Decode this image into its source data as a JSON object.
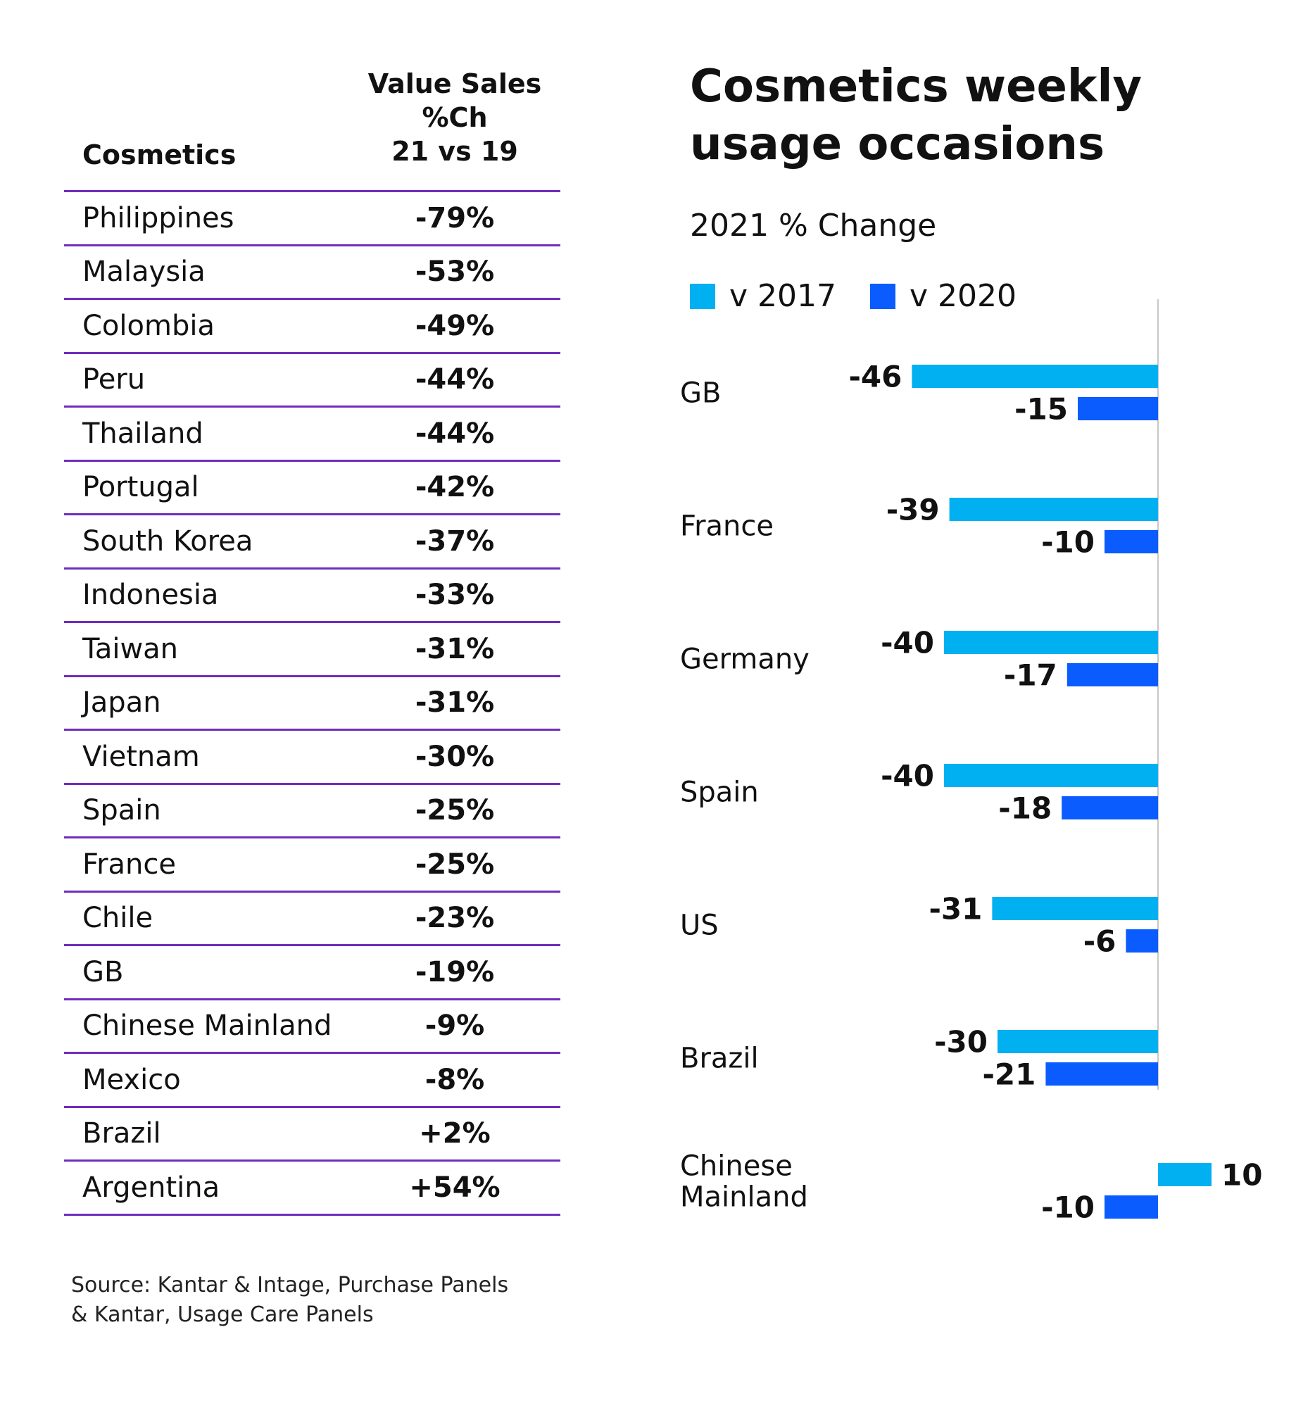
{
  "table": {
    "header_left": "Cosmetics",
    "header_right": [
      "Value Sales",
      "%Ch",
      "21 vs 19"
    ],
    "rows": [
      {
        "country": "Philippines",
        "value": "-79%"
      },
      {
        "country": "Malaysia",
        "value": "-53%"
      },
      {
        "country": "Colombia",
        "value": "-49%"
      },
      {
        "country": "Peru",
        "value": "-44%"
      },
      {
        "country": "Thailand",
        "value": "-44%"
      },
      {
        "country": "Portugal",
        "value": "-42%"
      },
      {
        "country": "South Korea",
        "value": "-37%"
      },
      {
        "country": "Indonesia",
        "value": "-33%"
      },
      {
        "country": "Taiwan",
        "value": "-31%"
      },
      {
        "country": "Japan",
        "value": "-31%"
      },
      {
        "country": "Vietnam",
        "value": "-30%"
      },
      {
        "country": "Spain",
        "value": "-25%"
      },
      {
        "country": "France",
        "value": "-25%"
      },
      {
        "country": "Chile",
        "value": "-23%"
      },
      {
        "country": "GB",
        "value": "-19%"
      },
      {
        "country": "Chinese Mainland",
        "value": "-9%"
      },
      {
        "country": "Mexico",
        "value": "-8%"
      },
      {
        "country": "Brazil",
        "value": "+2%"
      },
      {
        "country": "Argentina",
        "value": "+54%"
      }
    ]
  },
  "source": [
    "Source: Kantar & Intage, Purchase Panels",
    "& Kantar, Usage Care Panels"
  ],
  "colors": {
    "divider": "#6f2dbd",
    "v2017": "#00b0f0",
    "v2020": "#0a5cff",
    "axis": "#c8c8c8"
  },
  "chart_data": {
    "type": "bar",
    "orientation": "horizontal",
    "title": "Cosmetics weekly usage occasions",
    "subtitle": "2021 % Change",
    "categories": [
      "GB",
      "France",
      "Germany",
      "Spain",
      "US",
      "Brazil",
      "Chinese Mainland"
    ],
    "series": [
      {
        "name": "v 2017",
        "values": [
          -46,
          -39,
          -40,
          -40,
          -31,
          -30,
          10
        ]
      },
      {
        "name": "v 2020",
        "values": [
          -15,
          -10,
          -17,
          -18,
          -6,
          -21,
          -10
        ]
      }
    ],
    "legend": "top-left",
    "grid": false
  }
}
